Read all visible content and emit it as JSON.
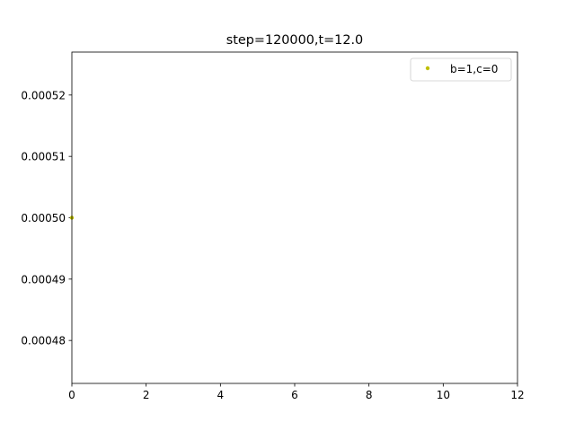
{
  "chart_data": {
    "type": "scatter",
    "title": "step=120000,t=12.0",
    "xlabel": "",
    "ylabel": "",
    "xlim": [
      0,
      12
    ],
    "ylim": [
      0.000473,
      0.000527
    ],
    "xticks": [
      "0",
      "2",
      "4",
      "6",
      "8",
      "10",
      "12"
    ],
    "xtick_values": [
      0,
      2,
      4,
      6,
      8,
      10,
      12
    ],
    "yticks": [
      "0.00048",
      "0.00049",
      "0.00050",
      "0.00051",
      "0.00052"
    ],
    "ytick_values": [
      0.00048,
      0.00049,
      0.0005,
      0.00051,
      0.00052
    ],
    "grid": false,
    "legend_position": "upper right",
    "series": [
      {
        "name": "b=1,c=0",
        "color": "#bfbf00",
        "marker": "point",
        "x": [
          0
        ],
        "y": [
          0.0005
        ]
      }
    ]
  }
}
